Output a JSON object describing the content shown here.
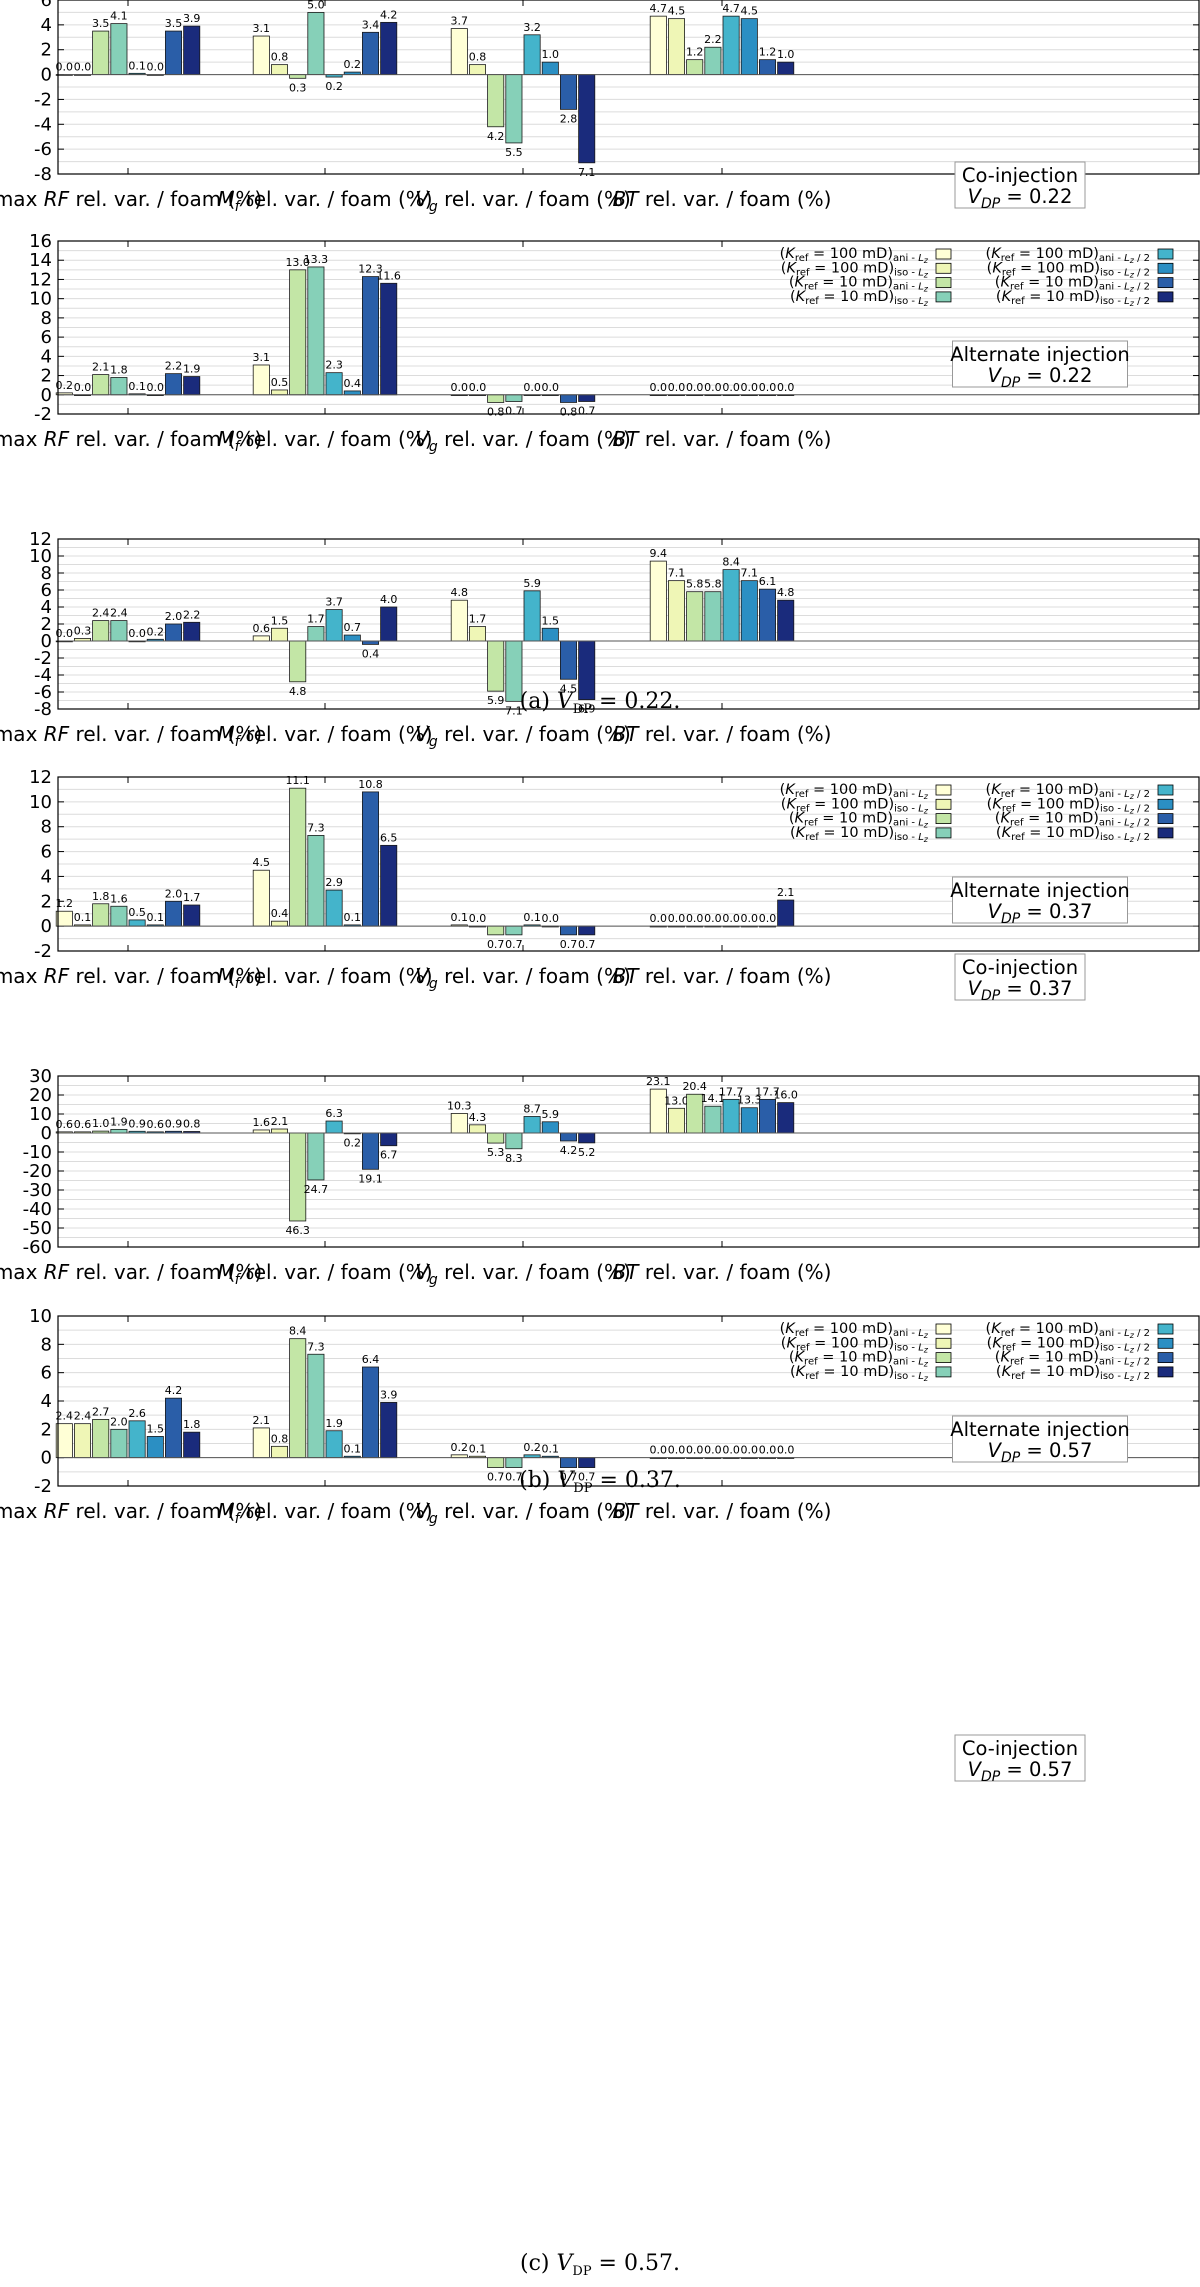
{
  "series_colors": [
    "#ffffd6",
    "#eff6b6",
    "#c3e6a6",
    "#86d0b8",
    "#44b4cb",
    "#2b8fc3",
    "#2a5ea8",
    "#1a2b7c"
  ],
  "legend": {
    "entries": [
      {
        "label": "(K_ref = 100 mD)_ani - L_z",
        "k": "100",
        "s": "ani",
        "l": "L"
      },
      {
        "label": "(K_ref = 100 mD)_iso - L_z",
        "k": "100",
        "s": "iso",
        "l": "L"
      },
      {
        "label": "(K_ref = 10 mD)_ani - L_z",
        "k": "10",
        "s": "ani",
        "l": "L"
      },
      {
        "label": "(K_ref = 10 mD)_iso - L_z",
        "k": "10",
        "s": "iso",
        "l": "L"
      },
      {
        "label": "(K_ref = 100 mD)_ani - L_z / 2",
        "k": "100",
        "s": "ani",
        "l": "L2"
      },
      {
        "label": "(K_ref = 100 mD)_iso - L_z / 2",
        "k": "100",
        "s": "iso",
        "l": "L2"
      },
      {
        "label": "(K_ref = 10 mD)_ani - L_z / 2",
        "k": "10",
        "s": "ani",
        "l": "L2"
      },
      {
        "label": "(K_ref = 10 mD)_iso - L_z / 2",
        "k": "10",
        "s": "iso",
        "l": "L2"
      }
    ]
  },
  "captions": [
    {
      "prefix": "(a) ",
      "sym": "V",
      "sub": "DP",
      "suffix": " = 0.22."
    },
    {
      "prefix": "(b) ",
      "sym": "V",
      "sub": "DP",
      "suffix": " = 0.37."
    },
    {
      "prefix": "(c) ",
      "sym": "V",
      "sub": "DP",
      "suffix": " = 0.57."
    }
  ],
  "chart_data": [
    {
      "type": "bar",
      "title": "Co-injection",
      "annotation": {
        "line1": "Co-injection",
        "line2": "V_DP = 0.22"
      },
      "categories": [
        "max RF rel. var. / foam (%)",
        "M_f rel. var. / foam (%)",
        "V_g rel. var. / foam (%)",
        "BT rel. var. / foam (%)"
      ],
      "ylim": [
        -8,
        6
      ],
      "yticks": [
        -8,
        -6,
        -4,
        -2,
        0,
        2,
        4,
        6
      ],
      "grid": true,
      "show_legend": false,
      "values": [
        [
          0.0,
          0.0,
          3.5,
          4.1,
          0.1,
          0.0,
          3.5,
          3.9
        ],
        [
          3.1,
          0.8,
          -0.3,
          5.0,
          -0.2,
          0.2,
          3.4,
          4.2
        ],
        [
          3.7,
          0.8,
          -4.2,
          -5.5,
          3.2,
          1.0,
          -2.8,
          -7.1
        ],
        [
          4.7,
          4.5,
          1.2,
          2.2,
          4.7,
          4.5,
          1.2,
          1.0
        ]
      ],
      "labels": [
        [
          "0.0",
          "0.0",
          "3.5",
          "4.1",
          "0.1",
          "0.0",
          "3.5",
          "3.9"
        ],
        [
          "3.1",
          "0.8",
          "0.3",
          "5.0",
          "0.2",
          "0.2",
          "3.4",
          "4.2"
        ],
        [
          "3.7",
          "0.8",
          "4.2",
          "5.5",
          "3.2",
          "1.0",
          "2.8",
          "7.1"
        ],
        [
          "4.7",
          "4.5",
          "1.2",
          "2.2",
          "4.7",
          "4.5",
          "1.2",
          "1.0"
        ]
      ]
    },
    {
      "type": "bar",
      "title": "Alternate injection",
      "annotation": {
        "line1": "Alternate injection",
        "line2": "V_DP = 0.22"
      },
      "categories": [
        "max RF rel. var. / foam (%)",
        "M_f rel. var. / foam (%)",
        "V_g rel. var. / foam (%)",
        "BT rel. var. / foam (%)"
      ],
      "ylim": [
        -2,
        16
      ],
      "yticks": [
        -2,
        0,
        2,
        4,
        6,
        8,
        10,
        12,
        14,
        16
      ],
      "grid": true,
      "show_legend": true,
      "values": [
        [
          0.2,
          0.0,
          2.1,
          1.8,
          0.1,
          0.0,
          2.2,
          1.9
        ],
        [
          3.1,
          0.5,
          13.0,
          13.3,
          2.3,
          0.4,
          12.3,
          11.6
        ],
        [
          0.0,
          0.0,
          -0.8,
          -0.7,
          0.0,
          0.0,
          -0.8,
          -0.7
        ],
        [
          0.0,
          0.0,
          0.0,
          0.0,
          0.0,
          0.0,
          0.0,
          0.0
        ]
      ],
      "labels": [
        [
          "0.2",
          "0.0",
          "2.1",
          "1.8",
          "0.1",
          "0.0",
          "2.2",
          "1.9"
        ],
        [
          "3.1",
          "0.5",
          "13.0",
          "13.3",
          "2.3",
          "0.4",
          "12.3",
          "11.6"
        ],
        [
          "0.0",
          "0.0",
          "0.8",
          "0.7",
          "0.0",
          "0.0",
          "0.8",
          "0.7"
        ],
        [
          "0.0",
          "0.0",
          "0.0",
          "0.0",
          "0.0",
          "0.0",
          "0.0",
          "0.0"
        ]
      ]
    },
    {
      "type": "bar",
      "title": "Co-injection",
      "annotation": {
        "line1": "Co-injection",
        "line2": "V_DP = 0.37"
      },
      "categories": [
        "max RF rel. var. / foam (%)",
        "M_f rel. var. / foam (%)",
        "V_g rel. var. / foam (%)",
        "BT rel. var. / foam (%)"
      ],
      "ylim": [
        -8,
        12
      ],
      "yticks": [
        -8,
        -6,
        -4,
        -2,
        0,
        2,
        4,
        6,
        8,
        10,
        12
      ],
      "grid": true,
      "show_legend": false,
      "values": [
        [
          0.0,
          0.3,
          2.4,
          2.4,
          0.0,
          0.2,
          2.0,
          2.2
        ],
        [
          0.6,
          1.5,
          -4.8,
          1.7,
          3.7,
          0.7,
          -0.4,
          4.0
        ],
        [
          4.8,
          1.7,
          -5.9,
          -7.1,
          5.9,
          1.5,
          -4.5,
          -6.9
        ],
        [
          9.4,
          7.1,
          5.8,
          5.8,
          8.4,
          7.1,
          6.1,
          4.8
        ]
      ],
      "labels": [
        [
          "0.0",
          "0.3",
          "2.4",
          "2.4",
          "0.0",
          "0.2",
          "2.0",
          "2.2"
        ],
        [
          "0.6",
          "1.5",
          "4.8",
          "1.7",
          "3.7",
          "0.7",
          "0.4",
          "4.0"
        ],
        [
          "4.8",
          "1.7",
          "5.9",
          "7.1",
          "5.9",
          "1.5",
          "4.5",
          "6.9"
        ],
        [
          "9.4",
          "7.1",
          "5.8",
          "5.8",
          "8.4",
          "7.1",
          "6.1",
          "4.8"
        ]
      ]
    },
    {
      "type": "bar",
      "title": "Alternate injection",
      "annotation": {
        "line1": "Alternate injection",
        "line2": "V_DP = 0.37"
      },
      "categories": [
        "max RF rel. var. / foam (%)",
        "M_f rel. var. / foam (%)",
        "V_g rel. var. / foam (%)",
        "BT rel. var. / foam (%)"
      ],
      "ylim": [
        -2,
        12
      ],
      "yticks": [
        -2,
        0,
        2,
        4,
        6,
        8,
        10,
        12
      ],
      "grid": true,
      "show_legend": true,
      "values": [
        [
          1.2,
          0.1,
          1.8,
          1.6,
          0.5,
          0.1,
          2.0,
          1.7
        ],
        [
          4.5,
          0.4,
          11.1,
          7.3,
          2.9,
          0.1,
          10.8,
          6.5
        ],
        [
          0.1,
          0.0,
          -0.7,
          -0.7,
          0.1,
          0.0,
          -0.7,
          -0.7
        ],
        [
          0.0,
          0.0,
          0.0,
          0.0,
          0.0,
          0.0,
          0.0,
          2.1
        ]
      ],
      "labels": [
        [
          "1.2",
          "0.1",
          "1.8",
          "1.6",
          "0.5",
          "0.1",
          "2.0",
          "1.7"
        ],
        [
          "4.5",
          "0.4",
          "11.1",
          "7.3",
          "2.9",
          "0.1",
          "10.8",
          "6.5"
        ],
        [
          "0.1",
          "0.0",
          "0.7",
          "0.7",
          "0.1",
          "0.0",
          "0.7",
          "0.7"
        ],
        [
          "0.0",
          "0.0",
          "0.0",
          "0.0",
          "0.0",
          "0.0",
          "0.0",
          "2.1"
        ]
      ]
    },
    {
      "type": "bar",
      "title": "Co-injection",
      "annotation": {
        "line1": "Co-injection",
        "line2": "V_DP = 0.57"
      },
      "categories": [
        "max RF rel. var. / foam (%)",
        "M_f rel. var. / foam (%)",
        "V_g rel. var. / foam (%)",
        "BT rel. var. / foam (%)"
      ],
      "ylim": [
        -60,
        30
      ],
      "yticks": [
        -60,
        -50,
        -40,
        -30,
        -20,
        -10,
        0,
        10,
        20,
        30
      ],
      "grid": true,
      "show_legend": false,
      "values": [
        [
          0.6,
          0.6,
          1.0,
          1.9,
          0.9,
          0.6,
          0.9,
          0.8
        ],
        [
          1.6,
          2.1,
          -46.3,
          -24.7,
          6.3,
          -0.2,
          -19.1,
          -6.7
        ],
        [
          10.3,
          4.3,
          -5.3,
          -8.3,
          8.7,
          5.9,
          -4.2,
          -5.2
        ],
        [
          23.1,
          13.0,
          20.4,
          14.1,
          17.7,
          13.3,
          17.7,
          16.0
        ]
      ],
      "labels": [
        [
          "0.6",
          "0.6",
          "1.0",
          "1.9",
          "0.9",
          "0.6",
          "0.9",
          "0.8"
        ],
        [
          "1.6",
          "2.1",
          "46.3",
          "24.7",
          "6.3",
          "0.2",
          "19.1",
          "6.7"
        ],
        [
          "10.3",
          "4.3",
          "5.3",
          "8.3",
          "8.7",
          "5.9",
          "4.2",
          "5.2"
        ],
        [
          "23.1",
          "13.0",
          "20.4",
          "14.1",
          "17.7",
          "13.3",
          "17.7",
          "16.0"
        ]
      ]
    },
    {
      "type": "bar",
      "title": "Alternate injection",
      "annotation": {
        "line1": "Alternate injection",
        "line2": "V_DP = 0.57"
      },
      "categories": [
        "max RF rel. var. / foam (%)",
        "M_f rel. var. / foam (%)",
        "V_g rel. var. / foam (%)",
        "BT rel. var. / foam (%)"
      ],
      "ylim": [
        -2,
        10
      ],
      "yticks": [
        -2,
        0,
        2,
        4,
        6,
        8,
        10
      ],
      "grid": true,
      "show_legend": true,
      "values": [
        [
          2.4,
          2.4,
          2.7,
          2.0,
          2.6,
          1.5,
          4.2,
          1.8
        ],
        [
          2.1,
          0.8,
          8.4,
          7.3,
          1.9,
          0.1,
          6.4,
          3.9
        ],
        [
          0.2,
          0.1,
          -0.7,
          -0.7,
          0.2,
          0.1,
          -0.7,
          -0.7
        ],
        [
          0.0,
          0.0,
          0.0,
          0.0,
          0.0,
          0.0,
          0.0,
          0.0
        ]
      ],
      "labels": [
        [
          "2.4",
          "2.4",
          "2.7",
          "2.0",
          "2.6",
          "1.5",
          "4.2",
          "1.8"
        ],
        [
          "2.1",
          "0.8",
          "8.4",
          "7.3",
          "1.9",
          "0.1",
          "6.4",
          "3.9"
        ],
        [
          "0.2",
          "0.1",
          "0.7",
          "0.7",
          "0.2",
          "0.1",
          "0.7",
          "0.7"
        ],
        [
          "0.0",
          "0.0",
          "0.0",
          "0.0",
          "0.0",
          "0.0",
          "0.0",
          "0.0"
        ]
      ]
    }
  ]
}
